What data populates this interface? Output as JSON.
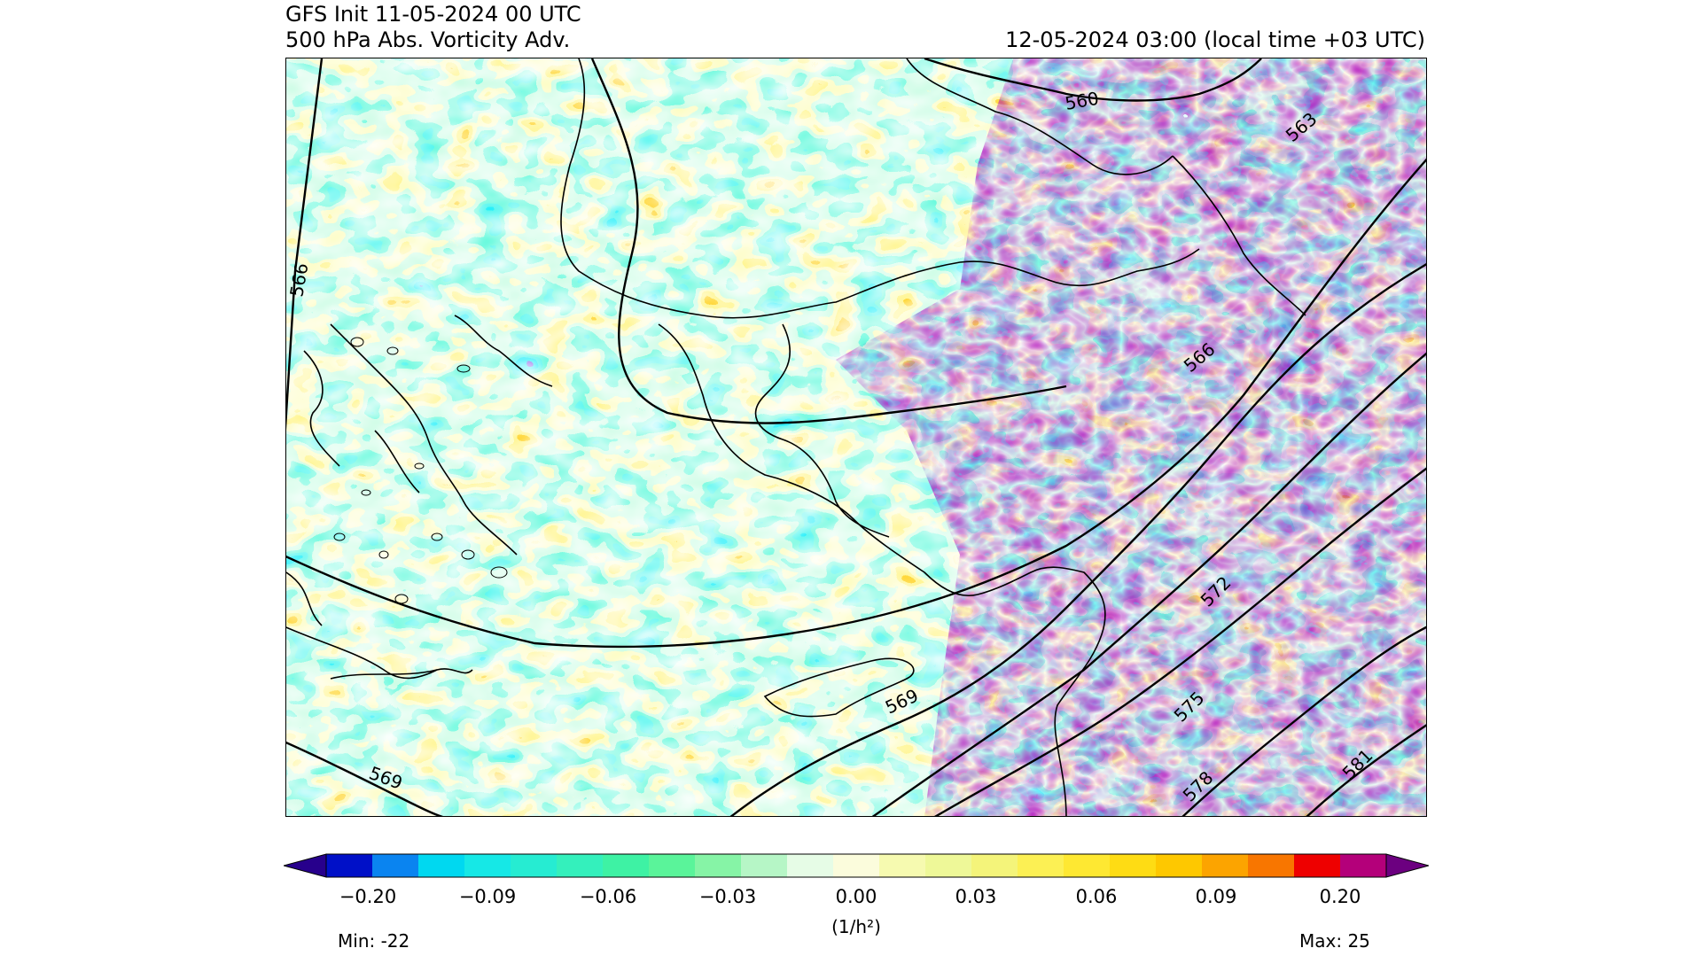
{
  "header": {
    "init_line": "GFS Init 11-05-2024 00 UTC",
    "field_line": "500 hPa Abs. Vorticity Adv.",
    "valid_line": "12-05-2024 03:00 (local time +03 UTC)"
  },
  "map": {
    "contour_labels": [
      "560",
      "563",
      "566",
      "566",
      "569",
      "569",
      "572",
      "575",
      "578",
      "581"
    ]
  },
  "colorbar": {
    "colors": [
      "#27008c",
      "#0010c8",
      "#0a84f0",
      "#00d8f0",
      "#16e8e6",
      "#26ecd2",
      "#34f0bc",
      "#3ef2a4",
      "#5af49a",
      "#86f4a6",
      "#b6f6c6",
      "#e6fce6",
      "#fbfcdc",
      "#f6fab0",
      "#eef898",
      "#f4f47a",
      "#fcf054",
      "#fee832",
      "#fedc14",
      "#fec800",
      "#fca400",
      "#f87600",
      "#ee0000",
      "#b4007a",
      "#6c0080"
    ],
    "tick_labels": [
      "−0.20",
      "−0.09",
      "−0.06",
      "−0.03",
      "0.00",
      "0.03",
      "0.06",
      "0.09",
      "0.20"
    ],
    "unit": "(1/h²)",
    "min_label": "Min: -22",
    "max_label": "Max: 25"
  }
}
